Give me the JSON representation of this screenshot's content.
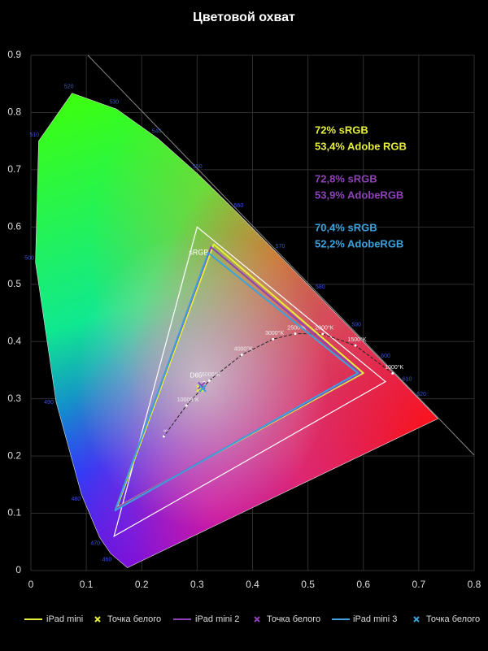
{
  "chart_data": {
    "type": "chromaticity",
    "title": "Цветовой охват",
    "xlim": [
      0,
      0.8
    ],
    "ylim": [
      0,
      0.9
    ],
    "xticks": [
      0,
      0.1,
      0.2,
      0.3,
      0.4,
      0.5,
      0.6,
      0.7,
      0.8
    ],
    "yticks": [
      0,
      0.1,
      0.2,
      0.3,
      0.4,
      0.5,
      0.6,
      0.7,
      0.8,
      0.9
    ],
    "grid": true,
    "spectral_locus": {
      "wavelengths": [
        null,
        460,
        470,
        480,
        490,
        500,
        510,
        520,
        530,
        540,
        550,
        560,
        570,
        580,
        590,
        600,
        610,
        620,
        null
      ],
      "x": [
        0.1741,
        0.144,
        0.1241,
        0.0913,
        0.0454,
        0.0082,
        0.0139,
        0.0743,
        0.1547,
        0.2296,
        0.3016,
        0.3731,
        0.4441,
        0.5125,
        0.5752,
        0.627,
        0.6658,
        0.6915,
        0.7347
      ],
      "y": [
        0.005,
        0.0297,
        0.0578,
        0.1327,
        0.295,
        0.5384,
        0.7502,
        0.8338,
        0.8059,
        0.7543,
        0.6923,
        0.6245,
        0.5547,
        0.4866,
        0.4242,
        0.3725,
        0.334,
        0.3083,
        0.2653
      ]
    },
    "planckian": {
      "labels": [
        "1000°K",
        "1500°K",
        "2000°K",
        "2500°K",
        "3000°K",
        "4000°K",
        "6000°K",
        "10000°K",
        "∞"
      ],
      "x": [
        0.6528,
        0.5857,
        0.5267,
        0.477,
        0.4369,
        0.3805,
        0.3221,
        0.2807,
        0.2399
      ],
      "y": [
        0.3444,
        0.3931,
        0.4133,
        0.4137,
        0.4041,
        0.3768,
        0.3318,
        0.2883,
        0.2342
      ]
    },
    "d65": {
      "label": "D65",
      "x": 0.3127,
      "y": 0.329
    },
    "reference": {
      "name": "sRGB",
      "color": "#ffffff",
      "x": [
        0.64,
        0.3,
        0.15
      ],
      "y": [
        0.33,
        0.6,
        0.06
      ]
    },
    "series": [
      {
        "name": "iPad mini",
        "color": "#e6ee3c",
        "x": [
          0.6,
          0.33,
          0.155
        ],
        "y": [
          0.345,
          0.57,
          0.11
        ],
        "white_point_name": "Точка белого",
        "white_point": {
          "x": 0.305,
          "y": 0.318
        },
        "coverage": [
          "72% sRGB",
          "53,4% Adobe RGB"
        ]
      },
      {
        "name": "iPad mini 2",
        "color": "#8e42b8",
        "x": [
          0.595,
          0.325,
          0.153
        ],
        "y": [
          0.345,
          0.565,
          0.108
        ],
        "white_point_name": "Точка белого",
        "white_point": {
          "x": 0.308,
          "y": 0.323
        },
        "coverage": [
          "72,8% sRGB",
          "53,9% AdobeRGB"
        ]
      },
      {
        "name": "iPad mini 3",
        "color": "#3aa2dc",
        "x": [
          0.59,
          0.32,
          0.152
        ],
        "y": [
          0.345,
          0.555,
          0.105
        ],
        "white_point_name": "Точка белого",
        "white_point": {
          "x": 0.31,
          "y": 0.318
        },
        "coverage": [
          "70,4% sRGB",
          "52,2% AdobeRGB"
        ]
      }
    ]
  }
}
